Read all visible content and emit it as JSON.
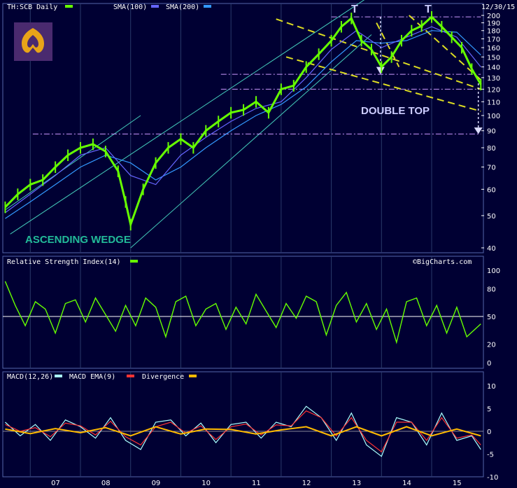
{
  "header": {
    "symbol_label": "TH:SCB Daily",
    "sma_label": "SMA(100)",
    "sma2_label": "SMA(200)",
    "date_label": "12/30/15",
    "watermark": "©BigCharts.com"
  },
  "colors": {
    "background": "#000033",
    "price": "#66ff00",
    "sma100": "#6666ff",
    "sma200": "#3399ff",
    "annotation_yellow": "#dddd22",
    "wedge_line": "#44ccbb",
    "level_line": "#cc99ff",
    "arrow": "#ddddff",
    "rsi_line": "#66ff00",
    "macd_line": "#aaffff",
    "macd_ema": "#ff3333",
    "divergence": "#ffbb00"
  },
  "annotations": {
    "wedge_label": "ASCENDING WEDGE",
    "double_top_label": "DOUBLE TOP",
    "top_marker": "T"
  },
  "chart_data": [
    {
      "type": "line",
      "name": "price",
      "title": "TH:SCB Daily",
      "y_scale": "log",
      "ylim": [
        40,
        200
      ],
      "y_ticks": [
        40,
        50,
        60,
        70,
        80,
        90,
        100,
        110,
        120,
        130,
        140,
        150,
        160,
        170,
        180,
        190,
        200
      ],
      "x_ticks": [
        "07",
        "08",
        "09",
        "10",
        "11",
        "12",
        "13",
        "14",
        "15"
      ],
      "series": [
        {
          "name": "TH:SCB Daily",
          "x": [
            2006.5,
            2006.75,
            2007.0,
            2007.25,
            2007.5,
            2007.75,
            2008.0,
            2008.25,
            2008.5,
            2008.75,
            2008.9,
            2009.0,
            2009.25,
            2009.5,
            2009.75,
            2010.0,
            2010.25,
            2010.5,
            2010.75,
            2011.0,
            2011.25,
            2011.5,
            2011.75,
            2012.0,
            2012.25,
            2012.5,
            2012.75,
            2013.0,
            2013.2,
            2013.4,
            2013.6,
            2013.8,
            2014.0,
            2014.2,
            2014.4,
            2014.6,
            2014.8,
            2015.0,
            2015.2,
            2015.4,
            2015.6,
            2015.8,
            2015.98
          ],
          "y": [
            53,
            58,
            62,
            64,
            70,
            76,
            80,
            82,
            78,
            68,
            55,
            47,
            60,
            72,
            80,
            85,
            80,
            90,
            96,
            102,
            104,
            110,
            102,
            120,
            123,
            140,
            153,
            168,
            185,
            196,
            168,
            158,
            140,
            150,
            168,
            180,
            186,
            198,
            185,
            172,
            160,
            138,
            124
          ]
        },
        {
          "name": "SMA(100)",
          "x": [
            2006.5,
            2007.0,
            2007.5,
            2008.0,
            2008.5,
            2009.0,
            2009.5,
            2010.0,
            2010.5,
            2011.0,
            2011.5,
            2012.0,
            2012.5,
            2013.0,
            2013.5,
            2014.0,
            2014.5,
            2015.0,
            2015.5,
            2015.98
          ],
          "y": [
            51,
            58,
            66,
            76,
            80,
            66,
            62,
            76,
            86,
            96,
            105,
            110,
            130,
            158,
            180,
            160,
            172,
            185,
            172,
            140
          ]
        },
        {
          "name": "SMA(200)",
          "x": [
            2006.5,
            2007.0,
            2007.5,
            2008.0,
            2008.5,
            2009.0,
            2009.5,
            2010.0,
            2010.5,
            2011.0,
            2011.5,
            2012.0,
            2012.5,
            2013.0,
            2013.5,
            2014.0,
            2014.5,
            2015.0,
            2015.5,
            2015.98
          ],
          "y": [
            49,
            55,
            62,
            70,
            76,
            72,
            64,
            70,
            80,
            90,
            100,
            108,
            122,
            145,
            168,
            165,
            168,
            180,
            178,
            152
          ]
        }
      ],
      "levels": [
        198,
        133,
        120,
        88
      ],
      "legend": [
        "SMA(100)",
        "SMA(200)"
      ],
      "xlabel": "",
      "ylabel": ""
    },
    {
      "type": "line",
      "title": "Relative Strength Index(14)",
      "ylim": [
        0,
        100
      ],
      "y_ticks": [
        0,
        20,
        50,
        80,
        100
      ],
      "reference": 50,
      "series": [
        {
          "name": "Relative Strength Index(14)",
          "x": [
            2006.5,
            2006.7,
            2006.9,
            2007.1,
            2007.3,
            2007.5,
            2007.7,
            2007.9,
            2008.1,
            2008.3,
            2008.5,
            2008.7,
            2008.9,
            2009.1,
            2009.3,
            2009.5,
            2009.7,
            2009.9,
            2010.1,
            2010.3,
            2010.5,
            2010.7,
            2010.9,
            2011.1,
            2011.3,
            2011.5,
            2011.7,
            2011.9,
            2012.1,
            2012.3,
            2012.5,
            2012.7,
            2012.9,
            2013.1,
            2013.3,
            2013.5,
            2013.7,
            2013.9,
            2014.1,
            2014.3,
            2014.5,
            2014.7,
            2014.9,
            2015.1,
            2015.3,
            2015.5,
            2015.7,
            2015.98
          ],
          "y": [
            88,
            62,
            40,
            66,
            58,
            32,
            64,
            68,
            44,
            70,
            52,
            34,
            62,
            40,
            70,
            60,
            28,
            66,
            72,
            40,
            58,
            64,
            36,
            60,
            42,
            74,
            56,
            38,
            64,
            48,
            72,
            66,
            30,
            62,
            76,
            44,
            64,
            36,
            58,
            22,
            66,
            70,
            40,
            62,
            32,
            60,
            28,
            42
          ]
        }
      ]
    },
    {
      "type": "line",
      "title": "MACD(12,26)",
      "ylim": [
        -10,
        10
      ],
      "y_ticks": [
        -10,
        -5,
        0,
        5,
        10
      ],
      "series": [
        {
          "name": "MACD(12,26)",
          "x": [
            2006.5,
            2006.8,
            2007.1,
            2007.4,
            2007.7,
            2008.0,
            2008.3,
            2008.6,
            2008.9,
            2009.2,
            2009.5,
            2009.8,
            2010.1,
            2010.4,
            2010.7,
            2011.0,
            2011.3,
            2011.6,
            2011.9,
            2012.2,
            2012.5,
            2012.8,
            2013.1,
            2013.4,
            2013.7,
            2014.0,
            2014.3,
            2014.6,
            2014.9,
            2015.2,
            2015.5,
            2015.8,
            2015.98
          ],
          "y": [
            2,
            -1,
            1.5,
            -2,
            2.5,
            1,
            -1.5,
            3,
            -2,
            -4,
            2,
            2.5,
            -1,
            1.8,
            -2.5,
            1.5,
            2,
            -1.5,
            2,
            1,
            5.5,
            3,
            -2,
            4,
            -3,
            -5.5,
            3,
            2,
            -3,
            4,
            -2,
            -1,
            -4
          ]
        },
        {
          "name": "MACD EMA(9)",
          "x": [
            2006.5,
            2006.8,
            2007.1,
            2007.4,
            2007.7,
            2008.0,
            2008.3,
            2008.6,
            2008.9,
            2009.2,
            2009.5,
            2009.8,
            2010.1,
            2010.4,
            2010.7,
            2011.0,
            2011.3,
            2011.6,
            2011.9,
            2012.2,
            2012.5,
            2012.8,
            2013.1,
            2013.4,
            2013.7,
            2014.0,
            2014.3,
            2014.6,
            2014.9,
            2015.2,
            2015.5,
            2015.8,
            2015.98
          ],
          "y": [
            1.5,
            0,
            0.8,
            -1.2,
            1.8,
            1.2,
            -0.8,
            2.2,
            -1.2,
            -3,
            1,
            2,
            -0.4,
            1.2,
            -1.8,
            1,
            1.6,
            -0.8,
            1.4,
            1.2,
            4.5,
            3,
            -1,
            3,
            -2,
            -4.5,
            2,
            2,
            -2,
            3,
            -1.5,
            -0.8,
            -3
          ]
        },
        {
          "name": "Divergence",
          "x": [
            2006.5,
            2007.0,
            2007.5,
            2008.0,
            2008.5,
            2009.0,
            2009.5,
            2010.0,
            2010.5,
            2011.0,
            2011.5,
            2012.0,
            2012.5,
            2013.0,
            2013.5,
            2014.0,
            2014.5,
            2015.0,
            2015.5,
            2015.98
          ],
          "y": [
            0.5,
            -0.5,
            0.6,
            -0.3,
            0.8,
            -1,
            1,
            -0.6,
            0.5,
            0.4,
            -0.6,
            0.3,
            1,
            -1,
            1,
            -1,
            1,
            -1,
            0.5,
            -1
          ]
        }
      ],
      "legend": [
        "MACD(12,26)",
        "MACD EMA(9)",
        "Divergence"
      ]
    }
  ]
}
